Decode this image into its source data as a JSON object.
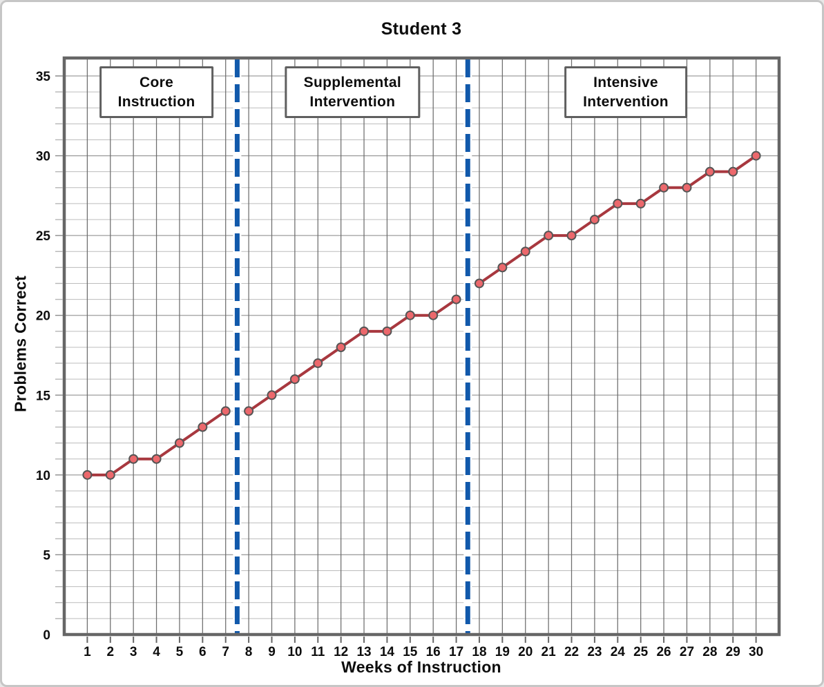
{
  "page": {
    "background": "#ffffff",
    "border_color": "#c6c6c6"
  },
  "chart_data": {
    "type": "line",
    "title": "Student 3",
    "xlabel": "Weeks of Instruction",
    "ylabel": "Problems Correct",
    "xlim": [
      0,
      31
    ],
    "ylim": [
      0,
      36
    ],
    "grid": "both",
    "legend_position": "none",
    "x_ticks": [
      1,
      2,
      3,
      4,
      5,
      6,
      7,
      8,
      9,
      10,
      11,
      12,
      13,
      14,
      15,
      16,
      17,
      18,
      19,
      20,
      21,
      22,
      23,
      24,
      25,
      26,
      27,
      28,
      29,
      30
    ],
    "y_tick_labels": [
      0,
      5,
      10,
      15,
      20,
      25,
      30,
      35
    ],
    "series": [
      {
        "name": "Core Instruction",
        "x": [
          1,
          2,
          3,
          4,
          5,
          6,
          7
        ],
        "values": [
          10,
          10,
          11,
          11,
          12,
          13,
          14
        ]
      },
      {
        "name": "Supplemental Intervention",
        "x": [
          8,
          9,
          10,
          11,
          12,
          13,
          14,
          15,
          16,
          17
        ],
        "values": [
          14,
          15,
          16,
          17,
          18,
          19,
          19,
          20,
          20,
          21
        ]
      },
      {
        "name": "Intensive Intervention",
        "x": [
          18,
          19,
          20,
          21,
          22,
          23,
          24,
          25,
          26,
          27,
          28,
          29,
          30
        ],
        "values": [
          22,
          23,
          24,
          25,
          25,
          26,
          27,
          27,
          28,
          28,
          29,
          29,
          30
        ]
      }
    ],
    "phase_dividers": [
      7.5,
      17.5
    ],
    "phase_labels": [
      {
        "text": "Core\nInstruction",
        "center_week": 4
      },
      {
        "text": "Supplemental\nIntervention",
        "center_week": 12.5
      },
      {
        "text": "Intensive\nIntervention",
        "center_week": 24.35
      }
    ],
    "colors": {
      "line": "#a8383f",
      "marker_fill": "#ec686c",
      "marker_stroke": "#555555",
      "divider": "#1159ab",
      "frame": "#666666",
      "grid_minor": "#bcbcbc",
      "grid_major": "#9e9e9e",
      "grid_vertical": "#6d6d6d",
      "tick_minor": "#b5b5b5",
      "tick_major": "#8c8c8c",
      "box_border": "#5f5f5f",
      "box_fill": "#ffffff",
      "text": "#0d0d0d"
    }
  }
}
